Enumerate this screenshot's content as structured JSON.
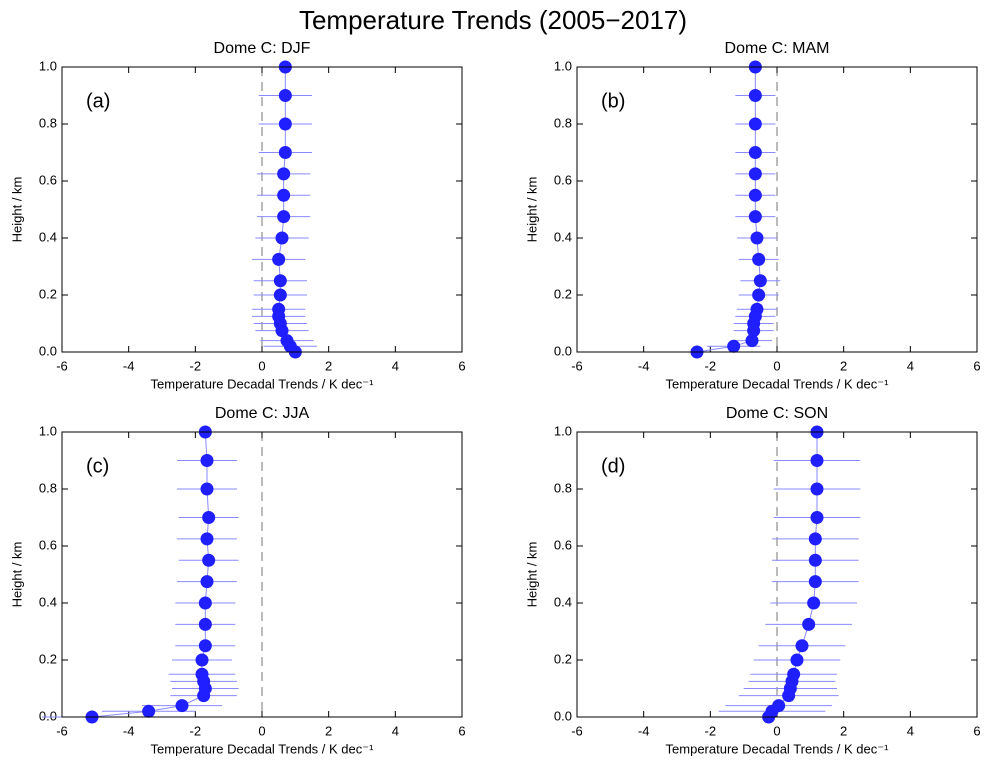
{
  "title": "Temperature Trends (2005−2017)",
  "chart_data": [
    {
      "type": "scatter",
      "title": "Dome C: DJF",
      "panel_label": "(a)",
      "xlabel": "Temperature Decadal Trends / K dec⁻¹",
      "ylabel": "Height / km",
      "xlim": [
        -6,
        6
      ],
      "xticks": [
        -6,
        -4,
        -2,
        0,
        2,
        4,
        6
      ],
      "ylim": [
        0,
        1
      ],
      "yticks": [
        {
          "value": 0,
          "label": "0.0"
        },
        0.2,
        0.4,
        0.6,
        0.8,
        {
          "value": 1,
          "label": "1.0"
        }
      ],
      "reference_line": 0,
      "series": [
        {
          "color": "#1f1fff",
          "error_color": "#8a8aff",
          "y": [
            1.0,
            0.9,
            0.8,
            0.7,
            0.625,
            0.55,
            0.475,
            0.4,
            0.325,
            0.25,
            0.2,
            0.15,
            0.125,
            0.1,
            0.075,
            0.04,
            0.02,
            0.0
          ],
          "x": [
            0.7,
            0.7,
            0.7,
            0.7,
            0.65,
            0.65,
            0.65,
            0.6,
            0.5,
            0.55,
            0.55,
            0.5,
            0.5,
            0.55,
            0.6,
            0.75,
            0.85,
            1.0
          ],
          "xerr": [
            0.8,
            0.8,
            0.8,
            0.8,
            0.8,
            0.8,
            0.8,
            0.8,
            0.8,
            0.8,
            0.8,
            0.8,
            0.8,
            0.8,
            0.8,
            0.8,
            0.8,
            0.6
          ]
        }
      ]
    },
    {
      "type": "scatter",
      "title": "Dome C: MAM",
      "panel_label": "(b)",
      "xlabel": "Temperature Decadal Trends / K dec⁻¹",
      "ylabel": "Height / km",
      "xlim": [
        -6,
        6
      ],
      "xticks": [
        -6,
        -4,
        -2,
        0,
        2,
        4,
        6
      ],
      "ylim": [
        0,
        1
      ],
      "yticks": [
        {
          "value": 0,
          "label": "0.0"
        },
        0.2,
        0.4,
        0.6,
        0.8,
        {
          "value": 1,
          "label": "1.0"
        }
      ],
      "reference_line": 0,
      "series": [
        {
          "color": "#1f1fff",
          "error_color": "#8a8aff",
          "y": [
            1.0,
            0.9,
            0.8,
            0.7,
            0.625,
            0.55,
            0.475,
            0.4,
            0.325,
            0.25,
            0.2,
            0.15,
            0.125,
            0.1,
            0.075,
            0.04,
            0.02,
            0.0
          ],
          "x": [
            -0.65,
            -0.65,
            -0.65,
            -0.65,
            -0.65,
            -0.65,
            -0.65,
            -0.6,
            -0.55,
            -0.5,
            -0.55,
            -0.6,
            -0.65,
            -0.7,
            -0.7,
            -0.75,
            -1.3,
            -2.4
          ],
          "xerr": [
            0.6,
            0.6,
            0.6,
            0.6,
            0.6,
            0.6,
            0.6,
            0.6,
            0.6,
            0.6,
            0.6,
            0.6,
            0.6,
            0.6,
            0.6,
            0.6,
            0.8,
            1.0
          ]
        }
      ]
    },
    {
      "type": "scatter",
      "title": "Dome C: JJA",
      "panel_label": "(c)",
      "xlabel": "Temperature Decadal Trends / K dec⁻¹",
      "ylabel": "Height / km",
      "xlim": [
        -6,
        6
      ],
      "xticks": [
        -6,
        -4,
        -2,
        0,
        2,
        4,
        6
      ],
      "ylim": [
        0,
        1
      ],
      "yticks": [
        {
          "value": 0,
          "label": "0.0"
        },
        0.2,
        0.4,
        0.6,
        0.8,
        {
          "value": 1,
          "label": "1.0"
        }
      ],
      "reference_line": 0,
      "series": [
        {
          "color": "#1f1fff",
          "error_color": "#8a8aff",
          "y": [
            1.0,
            0.9,
            0.8,
            0.7,
            0.625,
            0.55,
            0.475,
            0.4,
            0.325,
            0.25,
            0.2,
            0.15,
            0.125,
            0.1,
            0.075,
            0.04,
            0.02,
            0.0
          ],
          "x": [
            -1.7,
            -1.65,
            -1.65,
            -1.6,
            -1.65,
            -1.6,
            -1.65,
            -1.7,
            -1.7,
            -1.7,
            -1.8,
            -1.8,
            -1.75,
            -1.7,
            -1.75,
            -2.4,
            -3.4,
            -5.1
          ],
          "xerr": [
            0.9,
            0.9,
            0.9,
            0.9,
            0.9,
            0.9,
            0.9,
            0.9,
            0.9,
            0.9,
            0.9,
            1.0,
            1.0,
            1.0,
            1.0,
            1.2,
            1.4,
            1.5
          ]
        }
      ]
    },
    {
      "type": "scatter",
      "title": "Dome C: SON",
      "panel_label": "(d)",
      "xlabel": "Temperature Decadal Trends / K dec⁻¹",
      "ylabel": "Height / km",
      "xlim": [
        -6,
        6
      ],
      "xticks": [
        -6,
        -4,
        -2,
        0,
        2,
        4,
        6
      ],
      "ylim": [
        0,
        1
      ],
      "yticks": [
        {
          "value": 0,
          "label": "0.0"
        },
        0.2,
        0.4,
        0.6,
        0.8,
        {
          "value": 1,
          "label": "1.0"
        }
      ],
      "reference_line": 0,
      "series": [
        {
          "color": "#1f1fff",
          "error_color": "#8a8aff",
          "y": [
            1.0,
            0.9,
            0.8,
            0.7,
            0.625,
            0.55,
            0.475,
            0.4,
            0.325,
            0.25,
            0.2,
            0.15,
            0.125,
            0.1,
            0.075,
            0.04,
            0.02,
            0.0
          ],
          "x": [
            1.2,
            1.2,
            1.2,
            1.2,
            1.15,
            1.15,
            1.15,
            1.1,
            0.95,
            0.75,
            0.6,
            0.5,
            0.45,
            0.4,
            0.35,
            0.05,
            -0.15,
            -0.25
          ],
          "xerr": [
            1.3,
            1.3,
            1.3,
            1.3,
            1.3,
            1.3,
            1.3,
            1.3,
            1.3,
            1.3,
            1.3,
            1.3,
            1.3,
            1.4,
            1.5,
            1.6,
            1.6,
            1.6
          ]
        }
      ]
    }
  ]
}
